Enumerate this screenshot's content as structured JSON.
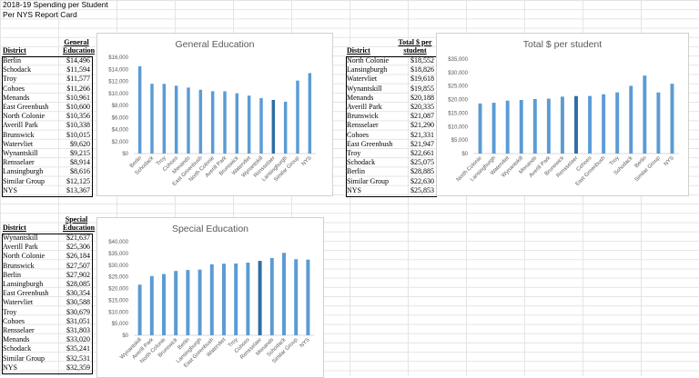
{
  "sheet": {
    "title_line1": "2018-19 Spending per Student",
    "title_line2": "Per NYS Report Card"
  },
  "tables": [
    {
      "id": "general",
      "header_district": "District",
      "header_value_line1": "General",
      "header_value_line2": "Education",
      "rows": [
        {
          "district": "Berlin",
          "value": "$14,496"
        },
        {
          "district": "Schodack",
          "value": "$11,594"
        },
        {
          "district": "Troy",
          "value": "$11,577"
        },
        {
          "district": "Cohoes",
          "value": "$11,266"
        },
        {
          "district": "Menands",
          "value": "$10,961"
        },
        {
          "district": "East Greenbush",
          "value": "$10,600"
        },
        {
          "district": "North Colonie",
          "value": "$10,356"
        },
        {
          "district": "Averill Park",
          "value": "$10,338"
        },
        {
          "district": "Brunswick",
          "value": "$10,015"
        },
        {
          "district": "Watervliet",
          "value": "$9,620"
        },
        {
          "district": "Wynantskill",
          "value": "$9,215"
        },
        {
          "district": "Rensselaer",
          "value": "$8,914"
        },
        {
          "district": "Lansingburgh",
          "value": "$8,616"
        },
        {
          "district": "Similar Group",
          "value": "$12,125"
        },
        {
          "district": "NYS",
          "value": "$13,367"
        }
      ]
    },
    {
      "id": "total",
      "header_district": "District",
      "header_value_line1": "Total $ per",
      "header_value_line2": "student",
      "rows": [
        {
          "district": "North Colonie",
          "value": "$18,552"
        },
        {
          "district": "Lansingburgh",
          "value": "$18,826"
        },
        {
          "district": "Watervliet",
          "value": "$19,618"
        },
        {
          "district": "Wynantskill",
          "value": "$19,855"
        },
        {
          "district": "Menands",
          "value": "$20,188"
        },
        {
          "district": "Averill Park",
          "value": "$20,335"
        },
        {
          "district": "Brunswick",
          "value": "$21,087"
        },
        {
          "district": "Rensselaer",
          "value": "$21,290"
        },
        {
          "district": "Cohoes",
          "value": "$21,331"
        },
        {
          "district": "East Greenbush",
          "value": "$21,947"
        },
        {
          "district": "Troy",
          "value": "$22,661"
        },
        {
          "district": "Schodack",
          "value": "$25,075"
        },
        {
          "district": "Berlin",
          "value": "$28,885"
        },
        {
          "district": "Similar Group",
          "value": "$22,630"
        },
        {
          "district": "NYS",
          "value": "$25,853"
        }
      ]
    },
    {
      "id": "special",
      "header_district": "District",
      "header_value_line1": "Special",
      "header_value_line2": "Education",
      "rows": [
        {
          "district": "Wynantskill",
          "value": "$21,637"
        },
        {
          "district": "Averill Park",
          "value": "$25,306"
        },
        {
          "district": "North Colonie",
          "value": "$26,184"
        },
        {
          "district": "Brunswick",
          "value": "$27,507"
        },
        {
          "district": "Berlin",
          "value": "$27,902"
        },
        {
          "district": "Lansingburgh",
          "value": "$28,085"
        },
        {
          "district": "East Greenbush",
          "value": "$30,354"
        },
        {
          "district": "Watervliet",
          "value": "$30,588"
        },
        {
          "district": "Troy",
          "value": "$30,679"
        },
        {
          "district": "Cohoes",
          "value": "$31,051"
        },
        {
          "district": "Rensselaer",
          "value": "$31,803"
        },
        {
          "district": "Menands",
          "value": "$33,020"
        },
        {
          "district": "Schodack",
          "value": "$35,241"
        },
        {
          "district": "Similar Group",
          "value": "$32,531"
        },
        {
          "district": "NYS",
          "value": "$32,359"
        }
      ]
    }
  ],
  "chart_data": [
    {
      "id": "general",
      "type": "bar",
      "title": "General Education",
      "categories": [
        "Berlin",
        "Schodack",
        "Troy",
        "Cohoes",
        "Menands",
        "East Greenbush",
        "North Colonie",
        "Averill Park",
        "Brunswick",
        "Watervliet",
        "Wynantskill",
        "Rensselaer",
        "Lansingburgh",
        "Similar Group",
        "NYS"
      ],
      "values": [
        14496,
        11594,
        11577,
        11266,
        10961,
        10600,
        10356,
        10338,
        10015,
        9620,
        9215,
        8914,
        8616,
        12125,
        13367
      ],
      "highlight_category": "Rensselaer",
      "ylim": [
        0,
        16000
      ],
      "yticks": [
        "$0",
        "$2,000",
        "$4,000",
        "$6,000",
        "$8,000",
        "$10,000",
        "$12,000",
        "$14,000",
        "$16,000"
      ],
      "grid": false,
      "legend": "none"
    },
    {
      "id": "total",
      "type": "bar",
      "title": "Total $ per student",
      "categories": [
        "North Colonie",
        "Lansingburgh",
        "Watervliet",
        "Wynantskill",
        "Menands",
        "Averill Park",
        "Brunswick",
        "Rensselaer",
        "Cohoes",
        "East Greenbush",
        "Troy",
        "Schodack",
        "Berlin",
        "Similar Group",
        "NYS"
      ],
      "values": [
        18552,
        18826,
        19618,
        19855,
        20188,
        20335,
        21087,
        21290,
        21331,
        21947,
        22661,
        25075,
        28885,
        22630,
        25853
      ],
      "highlight_category": "Rensselaer",
      "ylim": [
        0,
        35000
      ],
      "yticks": [
        "$0",
        "$5,000",
        "$10,000",
        "$15,000",
        "$20,000",
        "$25,000",
        "$30,000",
        "$35,000"
      ],
      "grid": false,
      "legend": "none"
    },
    {
      "id": "special",
      "type": "bar",
      "title": "Special Education",
      "categories": [
        "Wynantskill",
        "Averill Park",
        "North Colonie",
        "Brunswick",
        "Berlin",
        "Lansingburgh",
        "East Greenbush",
        "Watervliet",
        "Troy",
        "Cohoes",
        "Rensselaer",
        "Menands",
        "Schodack",
        "Similar Group",
        "NYS"
      ],
      "values": [
        21637,
        25306,
        26184,
        27507,
        27902,
        28085,
        30354,
        30588,
        30679,
        31051,
        31803,
        33020,
        35241,
        32531,
        32359
      ],
      "highlight_category": "Rensselaer",
      "ylim": [
        0,
        40000
      ],
      "yticks": [
        "$0",
        "$5,000",
        "$10,000",
        "$15,000",
        "$20,000",
        "$25,000",
        "$30,000",
        "$35,000",
        "$40,000"
      ],
      "grid": false,
      "legend": "none"
    }
  ],
  "colors": {
    "bar": "#5b9bd5",
    "bar_highlight": "#2e6da4",
    "axis_text": "#595959"
  }
}
